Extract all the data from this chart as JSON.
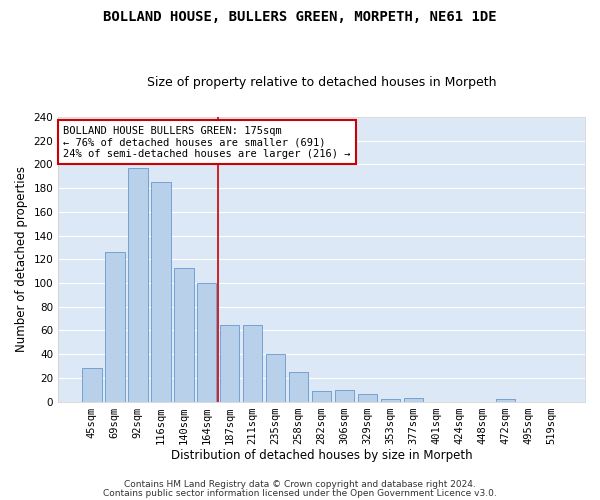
{
  "title1": "BOLLAND HOUSE, BULLERS GREEN, MORPETH, NE61 1DE",
  "title2": "Size of property relative to detached houses in Morpeth",
  "xlabel": "Distribution of detached houses by size in Morpeth",
  "ylabel": "Number of detached properties",
  "categories": [
    "45sqm",
    "69sqm",
    "92sqm",
    "116sqm",
    "140sqm",
    "164sqm",
    "187sqm",
    "211sqm",
    "235sqm",
    "258sqm",
    "282sqm",
    "306sqm",
    "329sqm",
    "353sqm",
    "377sqm",
    "401sqm",
    "424sqm",
    "448sqm",
    "472sqm",
    "495sqm",
    "519sqm"
  ],
  "values": [
    28,
    126,
    197,
    185,
    113,
    100,
    65,
    65,
    40,
    25,
    9,
    10,
    6,
    2,
    3,
    0,
    0,
    0,
    2,
    0,
    0
  ],
  "bar_color": "#b8d0ea",
  "bar_edge_color": "#6699cc",
  "ylim": [
    0,
    240
  ],
  "yticks": [
    0,
    20,
    40,
    60,
    80,
    100,
    120,
    140,
    160,
    180,
    200,
    220,
    240
  ],
  "vline_x": 5.5,
  "vline_color": "#cc0000",
  "annotation_line1": "BOLLAND HOUSE BULLERS GREEN: 175sqm",
  "annotation_line2": "← 76% of detached houses are smaller (691)",
  "annotation_line3": "24% of semi-detached houses are larger (216) →",
  "annotation_box_color": "#ffffff",
  "annotation_box_edge": "#cc0000",
  "footer1": "Contains HM Land Registry data © Crown copyright and database right 2024.",
  "footer2": "Contains public sector information licensed under the Open Government Licence v3.0.",
  "fig_bg_color": "#ffffff",
  "plot_bg_color": "#dce8f5",
  "grid_color": "#ffffff",
  "title1_fontsize": 10,
  "title2_fontsize": 9,
  "xlabel_fontsize": 8.5,
  "ylabel_fontsize": 8.5,
  "tick_fontsize": 7.5,
  "annotation_fontsize": 7.5,
  "footer_fontsize": 6.5
}
